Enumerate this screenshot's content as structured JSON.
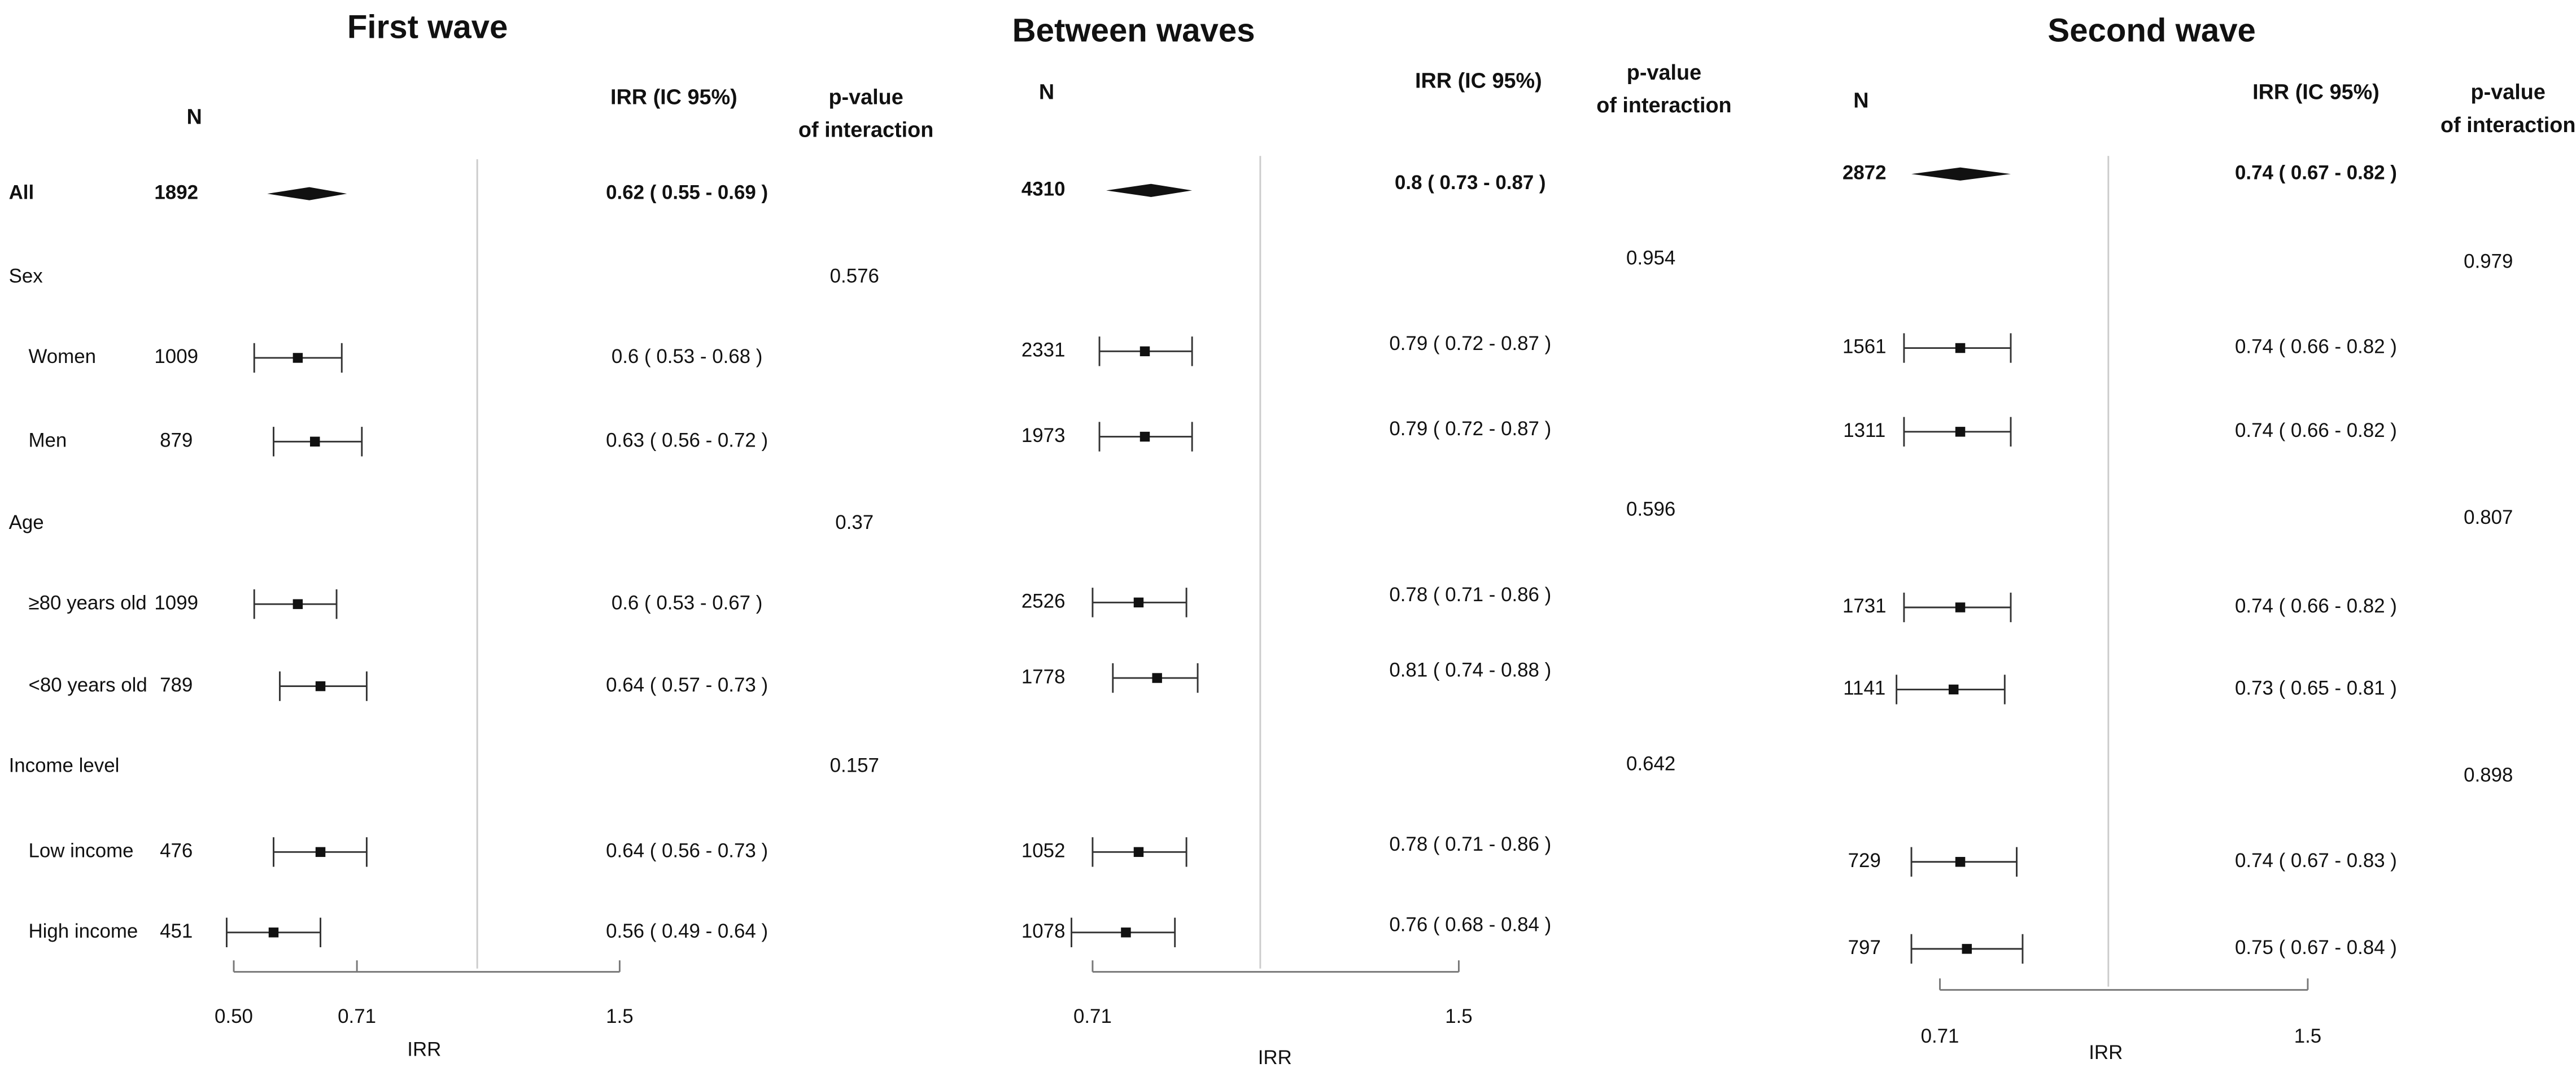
{
  "chart_data": [
    {
      "type": "forest",
      "title": "First wave",
      "n_header": "N",
      "estimate_header": "IRR (IC 95%)",
      "p_header": [
        "p-value",
        "of interaction"
      ],
      "xlabel": "IRR",
      "categories": [
        "All",
        "Sex",
        "Women",
        "Men",
        "Age",
        "≥80 years old",
        "<80 years old",
        "Income level",
        "Low income",
        "High income"
      ],
      "n": [
        1892,
        null,
        1009,
        879,
        null,
        1099,
        789,
        null,
        476,
        451
      ],
      "values": [
        0.62,
        null,
        0.6,
        0.63,
        null,
        0.6,
        0.64,
        null,
        0.64,
        0.56
      ],
      "lower": [
        0.55,
        null,
        0.53,
        0.56,
        null,
        0.53,
        0.57,
        null,
        0.56,
        0.49
      ],
      "upper": [
        0.69,
        null,
        0.68,
        0.72,
        null,
        0.67,
        0.73,
        null,
        0.73,
        0.64
      ],
      "value_labels": [
        "0.62 ( 0.55 - 0.69 )",
        null,
        "0.6 ( 0.53 - 0.68 )",
        "0.63 ( 0.56 - 0.72 )",
        null,
        "0.6 ( 0.53 - 0.67 )",
        "0.64 ( 0.57 - 0.73 )",
        null,
        "0.64 ( 0.56 - 0.73 )",
        "0.56 ( 0.49 - 0.64 )"
      ],
      "p_values": [
        null,
        0.576,
        null,
        null,
        0.37,
        null,
        null,
        0.157,
        null,
        null
      ],
      "xlim": [
        0.5,
        1.5
      ],
      "xticks": [
        {
          "value": 0.5,
          "label": "0.50"
        },
        0.71,
        1.5
      ],
      "log_scale": true,
      "reference_line": 1
    },
    {
      "type": "forest",
      "title": "Between waves",
      "n_header": "N",
      "estimate_header": "IRR (IC 95%)",
      "p_header": [
        "p-value",
        "of interaction"
      ],
      "xlabel": "IRR",
      "n": [
        4310,
        null,
        2331,
        1973,
        null,
        2526,
        1778,
        null,
        1052,
        1078
      ],
      "values": [
        0.8,
        null,
        0.79,
        0.79,
        null,
        0.78,
        0.81,
        null,
        0.78,
        0.76
      ],
      "lower": [
        0.73,
        null,
        0.72,
        0.72,
        null,
        0.71,
        0.74,
        null,
        0.71,
        0.68
      ],
      "upper": [
        0.87,
        null,
        0.87,
        0.87,
        null,
        0.86,
        0.88,
        null,
        0.86,
        0.84
      ],
      "value_labels": [
        "0.8 ( 0.73 - 0.87 )",
        null,
        "0.79 ( 0.72 - 0.87 )",
        "0.79 ( 0.72 - 0.87 )",
        null,
        "0.78 ( 0.71 - 0.86 )",
        "0.81 ( 0.74 - 0.88 )",
        null,
        "0.78 ( 0.71 - 0.86 )",
        "0.76 ( 0.68 - 0.84 )"
      ],
      "p_values": [
        null,
        0.954,
        null,
        null,
        0.596,
        null,
        null,
        0.642,
        null,
        null
      ],
      "xlim": [
        0.71,
        1.5
      ],
      "xticks": [
        0.71,
        1.5
      ],
      "log_scale": true,
      "reference_line": 1
    },
    {
      "type": "forest",
      "title": "Second wave",
      "n_header": "N",
      "estimate_header": "IRR (IC 95%)",
      "p_header": [
        "p-value",
        "of interaction"
      ],
      "xlabel": "IRR",
      "n": [
        2872,
        null,
        1561,
        1311,
        null,
        1731,
        1141,
        null,
        729,
        797
      ],
      "values": [
        0.74,
        null,
        0.74,
        0.74,
        null,
        0.74,
        0.73,
        null,
        0.74,
        0.75
      ],
      "lower": [
        0.67,
        null,
        0.66,
        0.66,
        null,
        0.66,
        0.65,
        null,
        0.67,
        0.67
      ],
      "upper": [
        0.82,
        null,
        0.82,
        0.82,
        null,
        0.82,
        0.81,
        null,
        0.83,
        0.84
      ],
      "value_labels": [
        "0.74 ( 0.67 - 0.82 )",
        null,
        "0.74 ( 0.66 - 0.82 )",
        "0.74 ( 0.66 - 0.82 )",
        null,
        "0.74 ( 0.66 - 0.82 )",
        "0.73 ( 0.65 - 0.81 )",
        null,
        "0.74 ( 0.67 - 0.83 )",
        "0.75 ( 0.67 - 0.84 )"
      ],
      "p_values": [
        null,
        0.979,
        null,
        null,
        0.807,
        null,
        null,
        0.898,
        null,
        null
      ],
      "xlim": [
        0.71,
        1.5
      ],
      "xticks": [
        0.71,
        1.5
      ],
      "log_scale": true,
      "reference_line": 1
    }
  ]
}
